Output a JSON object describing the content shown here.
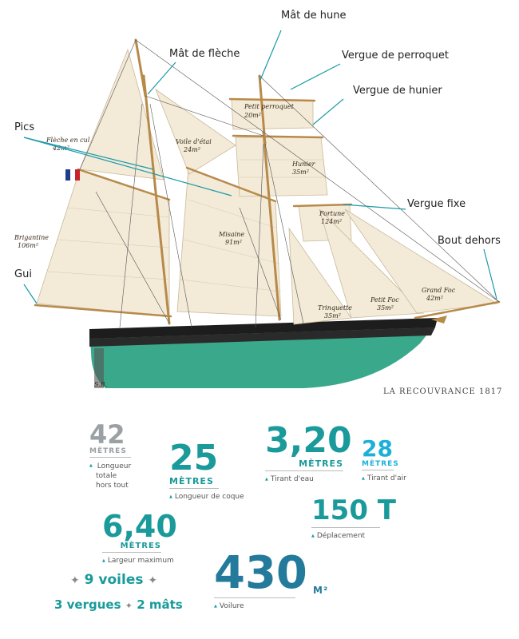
{
  "diagram": {
    "callouts": {
      "mat_de_hune": "Mât de hune",
      "mat_de_fleche": "Mât de flèche",
      "vergue_de_perroquet": "Vergue de perroquet",
      "vergue_de_hunier": "Vergue de hunier",
      "pics": "Pics",
      "vergue_fixe": "Vergue fixe",
      "bout_dehors": "Bout dehors",
      "gui": "Gui"
    },
    "sails": {
      "fleche_en_cul": "Flèche en cul",
      "fleche_en_cul_area": "42m²",
      "voile_d_etai": "Voile d'étai",
      "voile_d_etai_area": "24m²",
      "petit_perroquet": "Petit perroquet",
      "petit_perroquet_area": "20m²",
      "hunier": "Hunier",
      "hunier_area": "35m²",
      "fortune": "Fortune",
      "fortune_area": "124m²",
      "brigantine": "Brigantine",
      "brigantine_area": "106m²",
      "misaine": "Misaine",
      "misaine_area": "91m²",
      "trinquette": "Trinquette",
      "trinquette_area": "35m²",
      "petit_foc": "Petit Foc",
      "petit_foc_area": "35m²",
      "grand_foc": "Grand Foc",
      "grand_foc_area": "42m²"
    },
    "signature": "S.B.",
    "caption": "LA RECOUVRANCE 1817"
  },
  "stats": {
    "longueur_totale": {
      "value": "42",
      "unit": "MÈTRES",
      "desc_lines": [
        "Longueur",
        "totale",
        "hors tout"
      ]
    },
    "longueur_coque": {
      "value": "25",
      "unit": "MÈTRES",
      "desc": "Longueur de coque"
    },
    "tirant_eau": {
      "value": "3,20",
      "unit": "MÈTRES",
      "desc": "Tirant d'eau"
    },
    "tirant_air": {
      "value": "28",
      "unit": "MÈTRES",
      "desc": "Tirant d'air"
    },
    "largeur": {
      "value": "6,40",
      "unit": "MÈTRES",
      "desc": "Largeur maximum"
    },
    "deplacement": {
      "value": "150 T",
      "desc": "Déplacement"
    },
    "voilure": {
      "value": "430",
      "unit": "M²",
      "desc": "Voilure"
    }
  },
  "counts": {
    "voiles": "9 voiles",
    "vergues": "3 vergues",
    "mats": "2 mâts",
    "star": "✦"
  },
  "colors": {
    "accent_teal": "#1a9a9a",
    "accent_blue": "#1cb0d8",
    "accent_dark": "#237a9a",
    "grey": "#9aa0a4",
    "hull_green": "#3aa88a",
    "sail": "#f3ead8",
    "leader": "#1a9aa8"
  }
}
